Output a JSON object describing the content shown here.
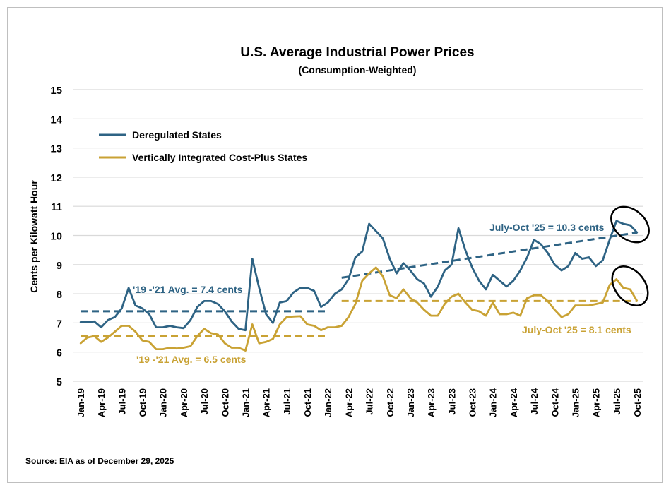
{
  "chart_data": {
    "type": "line",
    "title": "U.S. Average Industrial Power Prices",
    "subtitle": "(Consumption-Weighted)",
    "ylabel": "Cents per Kilowatt Hour",
    "xlabel": "",
    "ylim": [
      5,
      15
    ],
    "yticks": [
      5,
      6,
      7,
      8,
      9,
      10,
      11,
      12,
      13,
      14,
      15
    ],
    "grid": "horizontal",
    "legend_placement": "top-left",
    "x_start": "Jan-19",
    "x_end": "Oct-25",
    "xtick_labels": [
      "Jan-19",
      "Apr-19",
      "Jul-19",
      "Oct-19",
      "Jan-20",
      "Apr-20",
      "Jul-20",
      "Oct-20",
      "Jan-21",
      "Apr-21",
      "Jul-21",
      "Oct-21",
      "Jan-22",
      "Apr-22",
      "Jul-22",
      "Oct-22",
      "Jan-23",
      "Apr-23",
      "Jul-23",
      "Oct-23",
      "Jan-24",
      "Apr-24",
      "Jul-24",
      "Oct-24",
      "Jan-25",
      "Apr-25",
      "Jul-25",
      "Oct-25"
    ],
    "series": [
      {
        "name": "Deregulated States",
        "color": "#2e6384",
        "values": [
          7.03,
          7.03,
          7.05,
          6.85,
          7.1,
          7.2,
          7.5,
          8.2,
          7.6,
          7.5,
          7.3,
          6.85,
          6.85,
          6.9,
          6.85,
          6.82,
          7.1,
          7.55,
          7.75,
          7.75,
          7.65,
          7.4,
          7.05,
          6.8,
          6.75,
          9.2,
          8.2,
          7.3,
          7.0,
          7.7,
          7.75,
          8.05,
          8.2,
          8.2,
          8.1,
          7.55,
          7.7,
          8.0,
          8.15,
          8.5,
          9.25,
          9.45,
          10.4,
          10.15,
          9.9,
          9.2,
          8.7,
          9.05,
          8.8,
          8.5,
          8.35,
          7.9,
          8.25,
          8.8,
          9.0,
          10.25,
          9.5,
          8.9,
          8.45,
          8.15,
          8.65,
          8.45,
          8.25,
          8.45,
          8.8,
          9.25,
          9.85,
          9.7,
          9.4,
          9.0,
          8.8,
          8.95,
          9.4,
          9.2,
          9.25,
          8.95,
          9.15,
          9.85,
          10.5,
          10.4,
          10.35,
          10.1
        ]
      },
      {
        "name": "Vertically Integrated Cost-Plus States",
        "color": "#c9a234",
        "values": [
          6.3,
          6.5,
          6.55,
          6.35,
          6.5,
          6.7,
          6.9,
          6.9,
          6.7,
          6.4,
          6.35,
          6.1,
          6.1,
          6.15,
          6.12,
          6.15,
          6.2,
          6.55,
          6.8,
          6.65,
          6.6,
          6.3,
          6.15,
          6.15,
          6.05,
          6.95,
          6.3,
          6.35,
          6.45,
          6.95,
          7.2,
          7.22,
          7.23,
          6.95,
          6.9,
          6.75,
          6.85,
          6.85,
          6.9,
          7.2,
          7.65,
          8.45,
          8.7,
          8.9,
          8.6,
          7.95,
          7.85,
          8.15,
          7.85,
          7.7,
          7.45,
          7.25,
          7.25,
          7.65,
          7.9,
          8.0,
          7.7,
          7.45,
          7.4,
          7.25,
          7.7,
          7.3,
          7.3,
          7.35,
          7.25,
          7.85,
          7.95,
          7.95,
          7.75,
          7.45,
          7.2,
          7.3,
          7.6,
          7.6,
          7.6,
          7.65,
          7.7,
          8.3,
          8.5,
          8.2,
          8.15,
          7.75
        ]
      }
    ],
    "reference_lines": [
      {
        "series": "Deregulated States",
        "from": "Jan-19",
        "to": "Jan-22",
        "y_start": 7.4,
        "y_end": 7.4
      },
      {
        "series": "Vertically Integrated Cost-Plus States",
        "from": "Jan-19",
        "to": "Jan-22",
        "y_start": 6.55,
        "y_end": 6.55
      },
      {
        "series": "Deregulated States",
        "from": "Mar-22",
        "to": "Oct-25",
        "y_start": 8.55,
        "y_end": 10.1
      },
      {
        "series": "Vertically Integrated Cost-Plus States",
        "from": "Mar-22",
        "to": "Oct-25",
        "y_start": 7.75,
        "y_end": 7.75
      }
    ],
    "annotations": {
      "dereg_avg": "'19 -'21 Avg.  = 7.4 cents",
      "vi_avg": "'19 -'21 Avg. =  6.5  cents",
      "dereg_recent": "July-Oct '25 =  10.3 cents",
      "vi_recent": "July-Oct '25 =  8.1  cents"
    },
    "highlighted_period": "Jul-25 to Oct-25"
  },
  "source": "Source: EIA as of December 29, 2025"
}
